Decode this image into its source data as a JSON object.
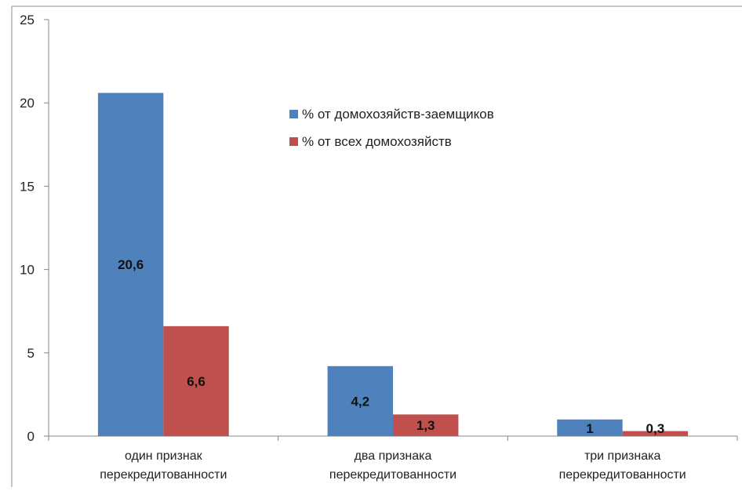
{
  "chart_data": {
    "type": "bar",
    "categories": [
      [
        "один признак",
        "перекредитованности"
      ],
      [
        "два признака",
        "перекредитованности"
      ],
      [
        "три признака",
        "перекредитованности"
      ]
    ],
    "series": [
      {
        "name": "% от домохозяйств-заемщиков",
        "color": "#4F81BD",
        "values": [
          20.6,
          4.2,
          1
        ],
        "labels": [
          "20,6",
          "4,2",
          "1"
        ]
      },
      {
        "name": "% от всех домохозяйств",
        "color": "#C0504D",
        "values": [
          6.6,
          1.3,
          0.3
        ],
        "labels": [
          "6,6",
          "1,3",
          "0,3"
        ]
      }
    ],
    "ylim": [
      0,
      25
    ],
    "yticks": [
      0,
      5,
      10,
      15,
      20,
      25
    ],
    "ytick_labels": [
      "0",
      "5",
      "10",
      "15",
      "20",
      "25"
    ],
    "grid": false,
    "legend_position": "top-center"
  }
}
